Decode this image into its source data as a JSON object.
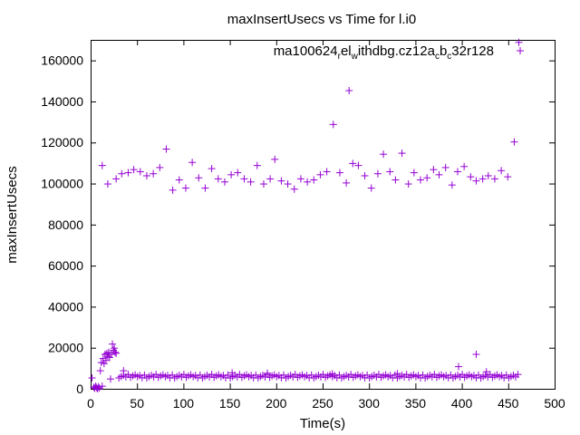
{
  "chart_data": {
    "type": "scatter",
    "title": "maxInsertUsecs vs Time for l.i0",
    "xlabel": "Time(s)",
    "ylabel": "maxInsertUsecs",
    "xlim": [
      0,
      500
    ],
    "ylim": [
      0,
      170000
    ],
    "xticks": [
      0,
      50,
      100,
      150,
      200,
      250,
      300,
      350,
      400,
      450,
      500
    ],
    "yticks": [
      0,
      20000,
      40000,
      60000,
      80000,
      100000,
      120000,
      140000,
      160000
    ],
    "grid": false,
    "legend_position": "top-right",
    "marker": "plus",
    "color": "#9400d3",
    "legend_parts": [
      {
        "text": "ma100624",
        "sub": false
      },
      {
        "text": "r",
        "sub": true
      },
      {
        "text": "el",
        "sub": false
      },
      {
        "text": "w",
        "sub": true
      },
      {
        "text": "ithdbg.cz12a",
        "sub": false
      },
      {
        "text": "c",
        "sub": true
      },
      {
        "text": "b",
        "sub": false
      },
      {
        "text": "c",
        "sub": true
      },
      {
        "text": "32r128",
        "sub": false
      }
    ],
    "series": [
      {
        "name": "ma100624_rel_withdbg.cz12a_c_b_c32r128",
        "points": [
          [
            1,
            5500
          ],
          [
            3,
            1000
          ],
          [
            4,
            500
          ],
          [
            5,
            1500
          ],
          [
            6,
            800
          ],
          [
            7,
            200
          ],
          [
            8,
            1200
          ],
          [
            9,
            600
          ],
          [
            10,
            9000
          ],
          [
            11,
            13000
          ],
          [
            12,
            1500
          ],
          [
            13,
            15000
          ],
          [
            14,
            12500
          ],
          [
            15,
            17000
          ],
          [
            16,
            14000
          ],
          [
            17,
            17500
          ],
          [
            18,
            16000
          ],
          [
            19,
            18000
          ],
          [
            20,
            15500
          ],
          [
            22,
            17000
          ],
          [
            23,
            22000
          ],
          [
            24,
            19000
          ],
          [
            25,
            20000
          ],
          [
            26,
            18000
          ],
          [
            27,
            17500
          ],
          [
            21,
            5000
          ],
          [
            12,
            109000
          ],
          [
            18,
            100000
          ],
          [
            27,
            102500
          ],
          [
            33,
            105000
          ],
          [
            40,
            105500
          ],
          [
            46,
            107000
          ],
          [
            53,
            106000
          ],
          [
            60,
            104000
          ],
          [
            67,
            105000
          ],
          [
            74,
            108000
          ],
          [
            81,
            117000
          ],
          [
            88,
            97000
          ],
          [
            95,
            102000
          ],
          [
            102,
            98000
          ],
          [
            109,
            110500
          ],
          [
            116,
            103000
          ],
          [
            123,
            98000
          ],
          [
            130,
            107500
          ],
          [
            137,
            102500
          ],
          [
            144,
            101000
          ],
          [
            151,
            104500
          ],
          [
            158,
            105500
          ],
          [
            165,
            102500
          ],
          [
            172,
            101000
          ],
          [
            179,
            109000
          ],
          [
            186,
            100000
          ],
          [
            193,
            102500
          ],
          [
            198,
            112000
          ],
          [
            205,
            101500
          ],
          [
            212,
            100000
          ],
          [
            219,
            97500
          ],
          [
            226,
            102500
          ],
          [
            233,
            101000
          ],
          [
            240,
            102000
          ],
          [
            247,
            104500
          ],
          [
            254,
            106000
          ],
          [
            261,
            129000
          ],
          [
            268,
            105500
          ],
          [
            275,
            100500
          ],
          [
            278,
            145500
          ],
          [
            282,
            110000
          ],
          [
            288,
            109000
          ],
          [
            295,
            104000
          ],
          [
            302,
            98000
          ],
          [
            309,
            105000
          ],
          [
            315,
            114500
          ],
          [
            322,
            106000
          ],
          [
            328,
            102000
          ],
          [
            335,
            115000
          ],
          [
            342,
            100000
          ],
          [
            348,
            105500
          ],
          [
            355,
            102000
          ],
          [
            362,
            103000
          ],
          [
            369,
            107000
          ],
          [
            375,
            104500
          ],
          [
            382,
            108000
          ],
          [
            389,
            99500
          ],
          [
            395,
            106000
          ],
          [
            402,
            108500
          ],
          [
            409,
            103500
          ],
          [
            415,
            101500
          ],
          [
            422,
            102500
          ],
          [
            428,
            104000
          ],
          [
            435,
            102500
          ],
          [
            442,
            106500
          ],
          [
            449,
            103500
          ],
          [
            456,
            120500
          ],
          [
            461,
            169000
          ],
          [
            415,
            17000
          ],
          [
            396,
            11000
          ],
          [
            426,
            8500
          ],
          [
            152,
            8000
          ],
          [
            35,
            9000
          ],
          [
            260,
            7500
          ],
          [
            190,
            7800
          ],
          [
            330,
            7600
          ]
        ],
        "baseline": {
          "x_start": 30,
          "x_end": 460,
          "x_step": 2.5,
          "y_values": [
            5500,
            6200,
            6800,
            6000,
            7200,
            5800,
            6500,
            7000,
            6100,
            6700,
            5600,
            6900
          ]
        }
      }
    ]
  }
}
